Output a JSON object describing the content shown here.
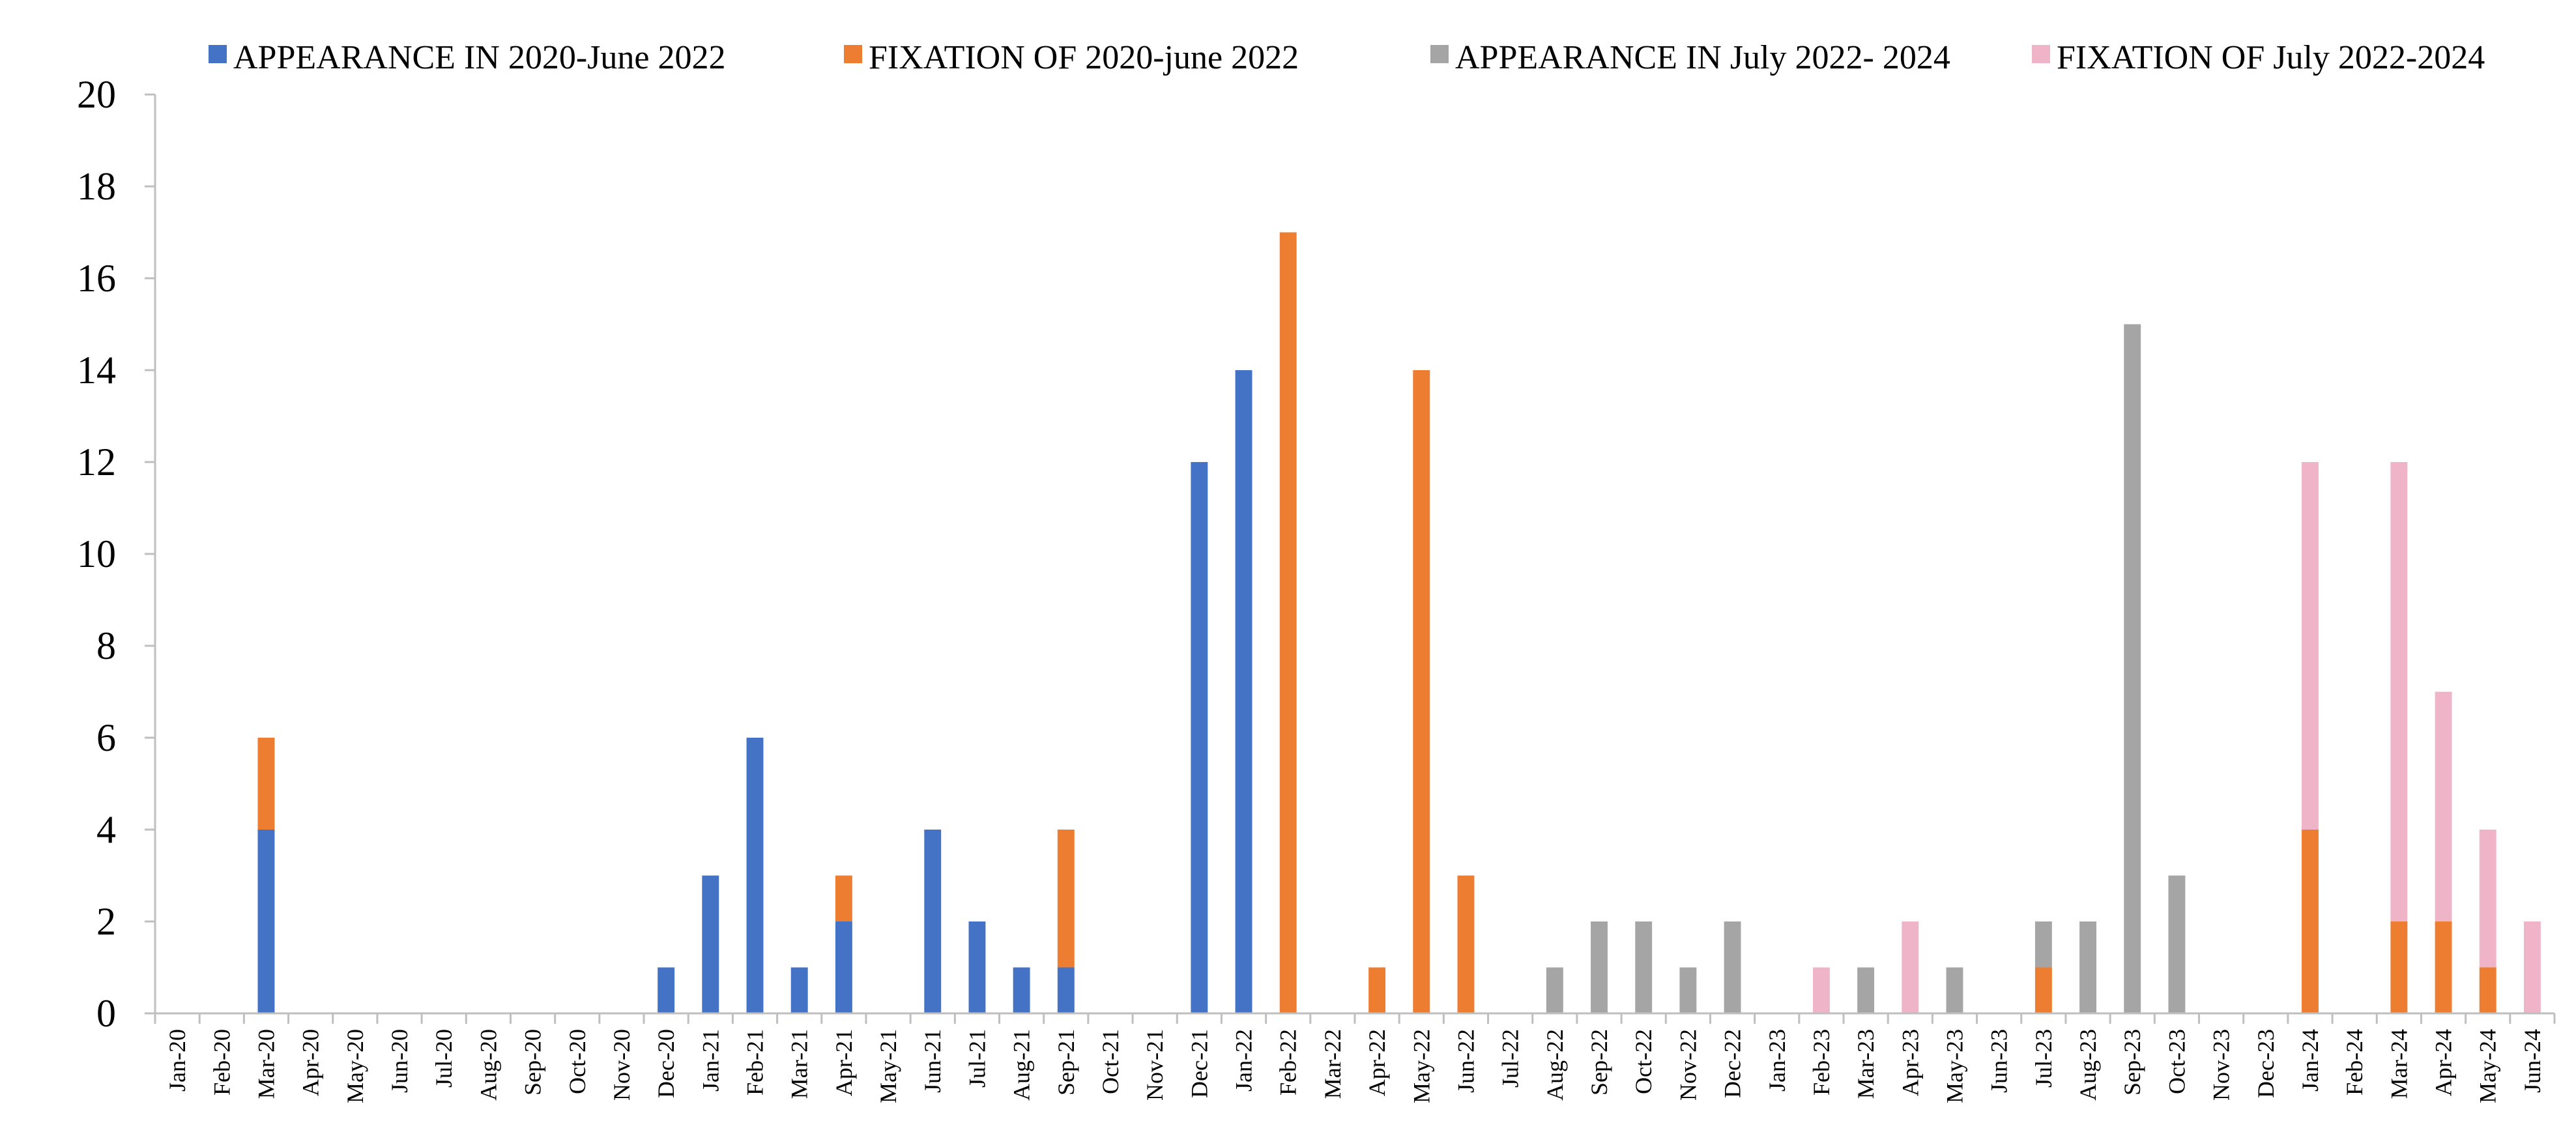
{
  "chart_data": {
    "type": "bar",
    "stacked": true,
    "title": "",
    "xlabel": "",
    "ylabel": "",
    "ylim": [
      0,
      20
    ],
    "yticks": [
      0,
      2,
      4,
      6,
      8,
      10,
      12,
      14,
      16,
      18,
      20
    ],
    "grid": false,
    "legend_position": "top",
    "categories": [
      "Jan-20",
      "Feb-20",
      "Mar-20",
      "Apr-20",
      "May-20",
      "Jun-20",
      "Jul-20",
      "Aug-20",
      "Sep-20",
      "Oct-20",
      "Nov-20",
      "Dec-20",
      "Jan-21",
      "Feb-21",
      "Mar-21",
      "Apr-21",
      "May-21",
      "Jun-21",
      "Jul-21",
      "Aug-21",
      "Sep-21",
      "Oct-21",
      "Nov-21",
      "Dec-21",
      "Jan-22",
      "Feb-22",
      "Mar-22",
      "Apr-22",
      "May-22",
      "Jun-22",
      "Jul-22",
      "Aug-22",
      "Sep-22",
      "Oct-22",
      "Nov-22",
      "Dec-22",
      "Jan-23",
      "Feb-23",
      "Mar-23",
      "Apr-23",
      "May-23",
      "Jun-23",
      "Jul-23",
      "Aug-23",
      "Sep-23",
      "Oct-23",
      "Nov-23",
      "Dec-23",
      "Jan-24",
      "Feb-24",
      "Mar-24",
      "Apr-24",
      "May-24",
      "Jun-24"
    ],
    "series": [
      {
        "name": "APPEARANCE IN 2020-June 2022",
        "color": "#4472c4",
        "values": [
          0,
          0,
          4,
          0,
          0,
          0,
          0,
          0,
          0,
          0,
          0,
          1,
          3,
          6,
          1,
          2,
          0,
          4,
          2,
          1,
          1,
          0,
          0,
          12,
          14,
          0,
          0,
          0,
          0,
          0,
          0,
          0,
          0,
          0,
          0,
          0,
          0,
          0,
          0,
          0,
          0,
          0,
          0,
          0,
          0,
          0,
          0,
          0,
          0,
          0,
          0,
          0,
          0,
          0
        ]
      },
      {
        "name": "FIXATION OF 2020-june 2022",
        "color": "#ed7d31",
        "values": [
          0,
          0,
          2,
          0,
          0,
          0,
          0,
          0,
          0,
          0,
          0,
          0,
          0,
          0,
          0,
          1,
          0,
          0,
          0,
          0,
          3,
          0,
          0,
          0,
          0,
          17,
          0,
          1,
          14,
          3,
          0,
          0,
          0,
          0,
          0,
          0,
          0,
          0,
          0,
          0,
          0,
          0,
          1,
          0,
          0,
          0,
          0,
          0,
          4,
          0,
          2,
          2,
          1,
          0
        ]
      },
      {
        "name": "APPEARANCE IN July 2022- 2024",
        "color": "#a5a5a5",
        "values": [
          0,
          0,
          0,
          0,
          0,
          0,
          0,
          0,
          0,
          0,
          0,
          0,
          0,
          0,
          0,
          0,
          0,
          0,
          0,
          0,
          0,
          0,
          0,
          0,
          0,
          0,
          0,
          0,
          0,
          0,
          0,
          1,
          2,
          2,
          1,
          2,
          0,
          0,
          1,
          0,
          1,
          0,
          1,
          2,
          15,
          3,
          0,
          0,
          0,
          0,
          0,
          0,
          0,
          0
        ]
      },
      {
        "name": "FIXATION OF July 2022-2024",
        "color": "#f0b4c8",
        "values": [
          0,
          0,
          0,
          0,
          0,
          0,
          0,
          0,
          0,
          0,
          0,
          0,
          0,
          0,
          0,
          0,
          0,
          0,
          0,
          0,
          0,
          0,
          0,
          0,
          0,
          0,
          0,
          0,
          0,
          0,
          0,
          0,
          0,
          0,
          0,
          0,
          0,
          1,
          0,
          2,
          0,
          0,
          0,
          0,
          0,
          0,
          0,
          0,
          8,
          0,
          10,
          5,
          3,
          2
        ]
      }
    ]
  }
}
